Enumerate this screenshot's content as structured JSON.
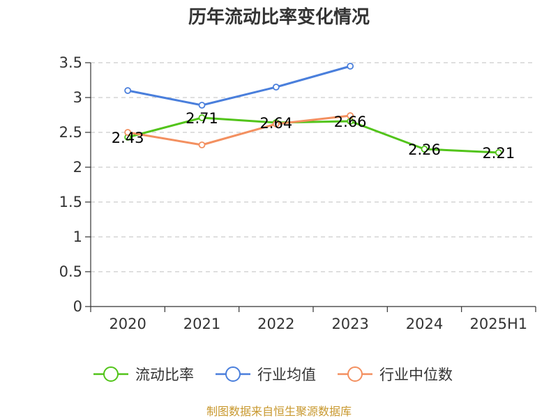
{
  "chart_data": {
    "type": "line",
    "title": "历年流动比率变化情况",
    "categories": [
      "2020",
      "2021",
      "2022",
      "2023",
      "2024",
      "2025H1"
    ],
    "ylim": [
      0,
      3.5
    ],
    "yticks": [
      "0",
      "0.5",
      "1",
      "1.5",
      "2",
      "2.5",
      "3",
      "3.5"
    ],
    "ytick_values": [
      0,
      0.5,
      1,
      1.5,
      2,
      2.5,
      3,
      3.5
    ],
    "grid": true,
    "legend_position": "bottom",
    "series": [
      {
        "name": "流动比率",
        "color": "#52c41a",
        "values": [
          2.43,
          2.71,
          2.64,
          2.66,
          2.26,
          2.21
        ],
        "labels": [
          "2.43",
          "2.71",
          "2.64",
          "2.66",
          "2.26",
          "2.21"
        ]
      },
      {
        "name": "行业均值",
        "color": "#4a7fdc",
        "values": [
          3.1,
          2.89,
          3.15,
          3.45,
          null,
          null
        ]
      },
      {
        "name": "行业中位数",
        "color": "#f39060",
        "values": [
          2.5,
          2.32,
          2.62,
          2.74,
          null,
          null
        ]
      }
    ],
    "source": "制图数据来自恒生聚源数据库"
  }
}
